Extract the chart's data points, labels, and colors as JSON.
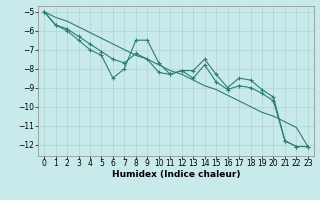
{
  "xlabel": "Humidex (Indice chaleur)",
  "background_color": "#c8eaea",
  "grid_color": "#afd4d4",
  "line_color": "#2e7d72",
  "xlim": [
    -0.5,
    23.5
  ],
  "ylim": [
    -12.6,
    -4.7
  ],
  "yticks": [
    -5,
    -6,
    -7,
    -8,
    -9,
    -10,
    -11,
    -12
  ],
  "xticks": [
    0,
    1,
    2,
    3,
    4,
    5,
    6,
    7,
    8,
    9,
    10,
    11,
    12,
    13,
    14,
    15,
    16,
    17,
    18,
    19,
    20,
    21,
    22,
    23
  ],
  "series1_x": [
    0,
    1,
    2,
    3,
    4,
    5,
    6,
    7,
    8,
    9,
    10,
    11,
    12,
    13,
    14,
    15,
    16,
    17,
    18,
    19,
    20,
    21,
    22,
    23
  ],
  "series1_y": [
    -5.0,
    -5.7,
    -6.0,
    -6.5,
    -7.0,
    -7.3,
    -8.5,
    -8.0,
    -6.5,
    -6.5,
    -7.7,
    -8.3,
    -8.1,
    -8.1,
    -7.5,
    -8.3,
    -9.0,
    -8.5,
    -8.6,
    -9.1,
    -9.5,
    -11.8,
    -12.1,
    -12.1
  ],
  "series2_x": [
    0,
    1,
    2,
    3,
    4,
    5,
    6,
    7,
    8,
    9,
    10,
    11,
    12,
    13,
    14,
    15,
    16,
    17,
    18,
    19,
    20,
    21,
    22,
    23
  ],
  "series2_y": [
    -5.0,
    -5.7,
    -5.9,
    -6.3,
    -6.7,
    -7.1,
    -7.5,
    -7.7,
    -7.2,
    -7.5,
    -8.2,
    -8.3,
    -8.1,
    -8.5,
    -7.8,
    -8.7,
    -9.1,
    -8.9,
    -9.0,
    -9.3,
    -9.7,
    -11.8,
    -12.1,
    -12.1
  ],
  "series3_x": [
    0,
    1,
    2,
    3,
    4,
    5,
    6,
    7,
    8,
    9,
    10,
    11,
    12,
    13,
    14,
    15,
    16,
    17,
    18,
    19,
    20,
    21,
    22,
    23
  ],
  "series3_y": [
    -5.0,
    -5.3,
    -5.5,
    -5.8,
    -6.1,
    -6.4,
    -6.7,
    -7.0,
    -7.3,
    -7.5,
    -7.8,
    -8.1,
    -8.3,
    -8.6,
    -8.9,
    -9.1,
    -9.4,
    -9.7,
    -10.0,
    -10.3,
    -10.5,
    -10.8,
    -11.1,
    -12.1
  ],
  "marker_size": 2.5,
  "linewidth": 0.8,
  "tick_fontsize": 5.5,
  "xlabel_fontsize": 6.5
}
